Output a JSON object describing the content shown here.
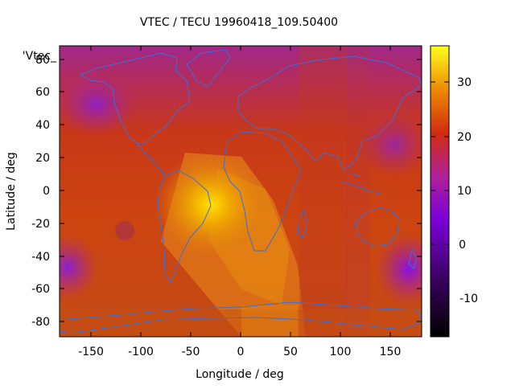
{
  "title": "VTEC / TECU 19960418_109.50400",
  "series_key": "'Vtec_",
  "xlabel": "Longitude / deg",
  "ylabel": "Latitude / deg",
  "xticks": [
    "-150",
    "-100",
    "-50",
    "0",
    "50",
    "100",
    "150"
  ],
  "yticks": [
    "80",
    "60",
    "40",
    "20",
    "0",
    "-20",
    "-40",
    "-60",
    "-80"
  ],
  "cbticks": [
    "30",
    "20",
    "10",
    "0",
    "-10"
  ],
  "colors": {
    "coast": "#3a6fd8",
    "frame": "#000000"
  }
}
